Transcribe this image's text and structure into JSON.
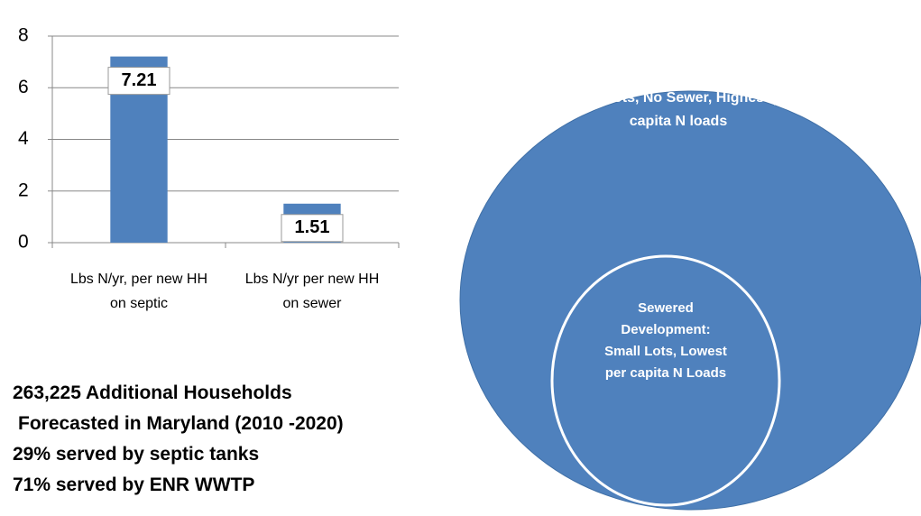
{
  "chart_data": {
    "type": "bar",
    "categories": [
      "Lbs N/yr, per new HH on septic",
      "Lbs N/yr per new HH on sewer"
    ],
    "values": [
      7.21,
      1.51
    ],
    "color": "#4f81bd",
    "ylim": [
      0,
      8
    ],
    "yticks": [
      0,
      2,
      4,
      6,
      8
    ],
    "grid": true
  },
  "notes": [
    "263,225 Additional Households",
    "Forecasted in Maryland (2010 -2020)",
    "29% served by septic tanks",
    "71% served by ENR WWTP"
  ],
  "diagram": {
    "outer": "Large Lots, No Sewer, Highest per capita N loads",
    "inner": "Sewered Development: Small Lots, Lowest per capita N Loads"
  }
}
